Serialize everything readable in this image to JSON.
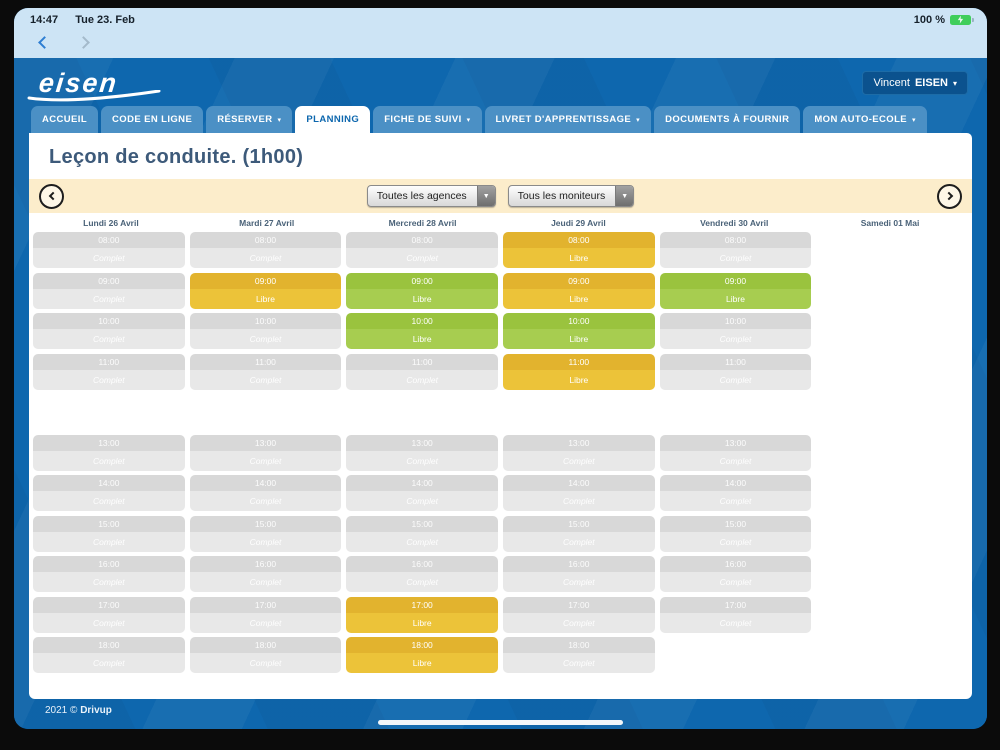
{
  "status_bar": {
    "time": "14:47",
    "date": "Tue 23. Feb",
    "battery_label": "100 %"
  },
  "header": {
    "logo_text": "eisen",
    "user_button": {
      "first": "Vincent",
      "last": "EISEN"
    }
  },
  "icons": {
    "dropdown_caret": "▼",
    "user_caret": "▾",
    "tab_caret": "▾"
  },
  "tabs": [
    {
      "label": "ACCUEIL",
      "active": false,
      "has_dropdown": false
    },
    {
      "label": "CODE EN LIGNE",
      "active": false,
      "has_dropdown": false
    },
    {
      "label": "RÉSERVER",
      "active": false,
      "has_dropdown": true
    },
    {
      "label": "PLANNING",
      "active": true,
      "has_dropdown": false
    },
    {
      "label": "FICHE DE SUIVI",
      "active": false,
      "has_dropdown": true
    },
    {
      "label": "LIVRET D'APPRENTISSAGE",
      "active": false,
      "has_dropdown": true
    },
    {
      "label": "DOCUMENTS À FOURNIR",
      "active": false,
      "has_dropdown": false
    },
    {
      "label": "MON AUTO-ECOLE",
      "active": false,
      "has_dropdown": true
    }
  ],
  "planning": {
    "title": "Leçon de conduite. (1h00)",
    "filters": {
      "agency_select": "Toutes les agences",
      "instructor_select": "Tous les moniteurs"
    },
    "day_headers": [
      "Lundi 26 Avril",
      "Mardi 27 Avril",
      "Mercredi 28 Avril",
      "Jeudi 29 Avril",
      "Vendredi 30 Avril",
      "Samedi 01 Mai"
    ],
    "status_labels": {
      "complet": "Complet",
      "libre": "Libre"
    },
    "rows": [
      {
        "time": "08:00",
        "cells": [
          "complet",
          "complet",
          "complet",
          "libre_yellow",
          "complet",
          "empty"
        ]
      },
      {
        "time": "09:00",
        "cells": [
          "complet",
          "libre_yellow",
          "libre_green",
          "libre_yellow",
          "libre_green",
          "empty"
        ]
      },
      {
        "time": "10:00",
        "cells": [
          "complet",
          "complet",
          "libre_green",
          "libre_green",
          "complet",
          "empty"
        ]
      },
      {
        "time": "11:00",
        "cells": [
          "complet",
          "complet",
          "complet",
          "libre_yellow",
          "complet",
          "empty"
        ]
      },
      {
        "time": "",
        "spacer": true,
        "cells": [
          "empty",
          "empty",
          "empty",
          "empty",
          "empty",
          "empty"
        ]
      },
      {
        "time": "13:00",
        "cells": [
          "complet",
          "complet",
          "complet",
          "complet",
          "complet",
          "empty"
        ]
      },
      {
        "time": "14:00",
        "cells": [
          "complet",
          "complet",
          "complet",
          "complet",
          "complet",
          "empty"
        ]
      },
      {
        "time": "15:00",
        "cells": [
          "complet",
          "complet",
          "complet",
          "complet",
          "complet",
          "empty"
        ]
      },
      {
        "time": "16:00",
        "cells": [
          "complet",
          "complet",
          "complet",
          "complet",
          "complet",
          "empty"
        ]
      },
      {
        "time": "17:00",
        "cells": [
          "complet",
          "complet",
          "libre_yellow",
          "complet",
          "complet",
          "empty"
        ]
      },
      {
        "time": "18:00",
        "cells": [
          "complet",
          "complet",
          "libre_yellow",
          "complet",
          "empty",
          "empty"
        ]
      }
    ]
  },
  "footer": {
    "copyright_prefix": "2021 ©",
    "brand": "Drivup"
  },
  "colors": {
    "app_blue": "#0e67ae",
    "tab_inactive_blue": "#4b90c5",
    "chrome_light_blue": "#cde4f5",
    "filter_cream": "#fcedcb",
    "slot_gray_top": "#d8d8d8",
    "slot_gray_bottom": "#e8e8e8",
    "slot_yellow_top": "#e2b32e",
    "slot_yellow_bottom": "#ecc339",
    "slot_green_top": "#9ac33e",
    "slot_green_bottom": "#a7cd50",
    "battery_green": "#40ce5b"
  }
}
